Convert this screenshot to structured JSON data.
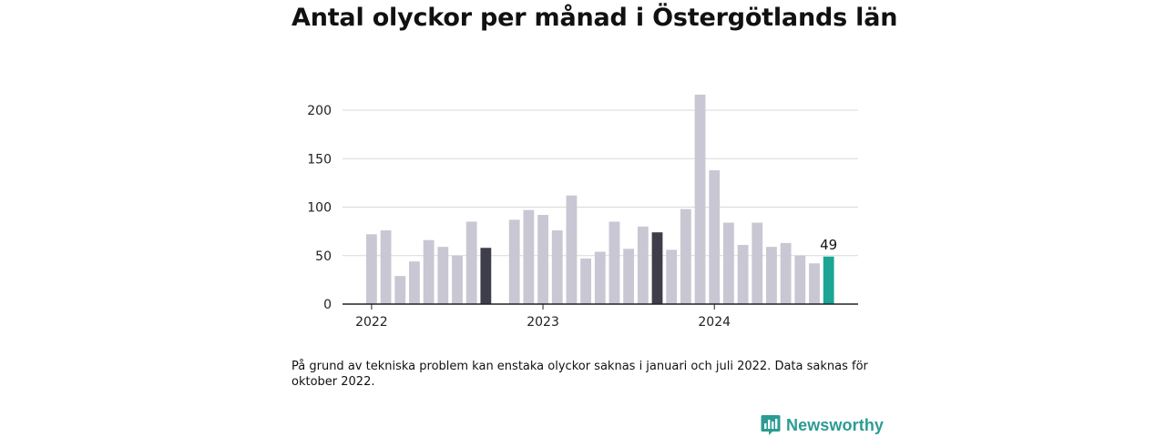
{
  "title": "Antal olyckor per månad i Östergötlands län",
  "footnote": "På grund av tekniska problem kan enstaka olyckor saknas i januari och juli 2022. Data saknas för oktober 2022.",
  "brand": {
    "name": "Newsworthy",
    "icon": "newsworthy-logo-icon",
    "color": "#2b9c93"
  },
  "chart_data": {
    "type": "bar",
    "months": [
      "2022-01",
      "2022-02",
      "2022-03",
      "2022-04",
      "2022-05",
      "2022-06",
      "2022-07",
      "2022-08",
      "2022-09",
      "2022-10",
      "2022-11",
      "2022-12",
      "2023-01",
      "2023-02",
      "2023-03",
      "2023-04",
      "2023-05",
      "2023-06",
      "2023-07",
      "2023-08",
      "2023-09",
      "2023-10",
      "2023-11",
      "2023-12",
      "2024-01",
      "2024-02",
      "2024-03",
      "2024-04",
      "2024-05",
      "2024-06",
      "2024-07",
      "2024-08",
      "2024-09",
      "2024-10"
    ],
    "values": [
      72,
      76,
      29,
      44,
      66,
      59,
      50,
      85,
      58,
      null,
      87,
      97,
      92,
      76,
      112,
      47,
      54,
      85,
      57,
      80,
      74,
      56,
      98,
      216,
      138,
      84,
      61,
      84,
      59,
      63,
      50,
      42,
      49,
      null
    ],
    "highlight_indices": [
      8,
      20
    ],
    "latest_index": 32,
    "latest_label": "49",
    "x_ticks": [
      {
        "label": "2022",
        "month": "2022-01"
      },
      {
        "label": "2023",
        "month": "2023-01"
      },
      {
        "label": "2024",
        "month": "2024-01"
      }
    ],
    "y_ticks": [
      0,
      50,
      100,
      150,
      200
    ],
    "ylim": [
      0,
      216
    ],
    "grid": true,
    "colors": {
      "bar": "#c8c7d3",
      "highlight": "#3e3e4a",
      "latest": "#1aa594",
      "grid": "#d9d9d9",
      "axis": "#222222"
    }
  }
}
